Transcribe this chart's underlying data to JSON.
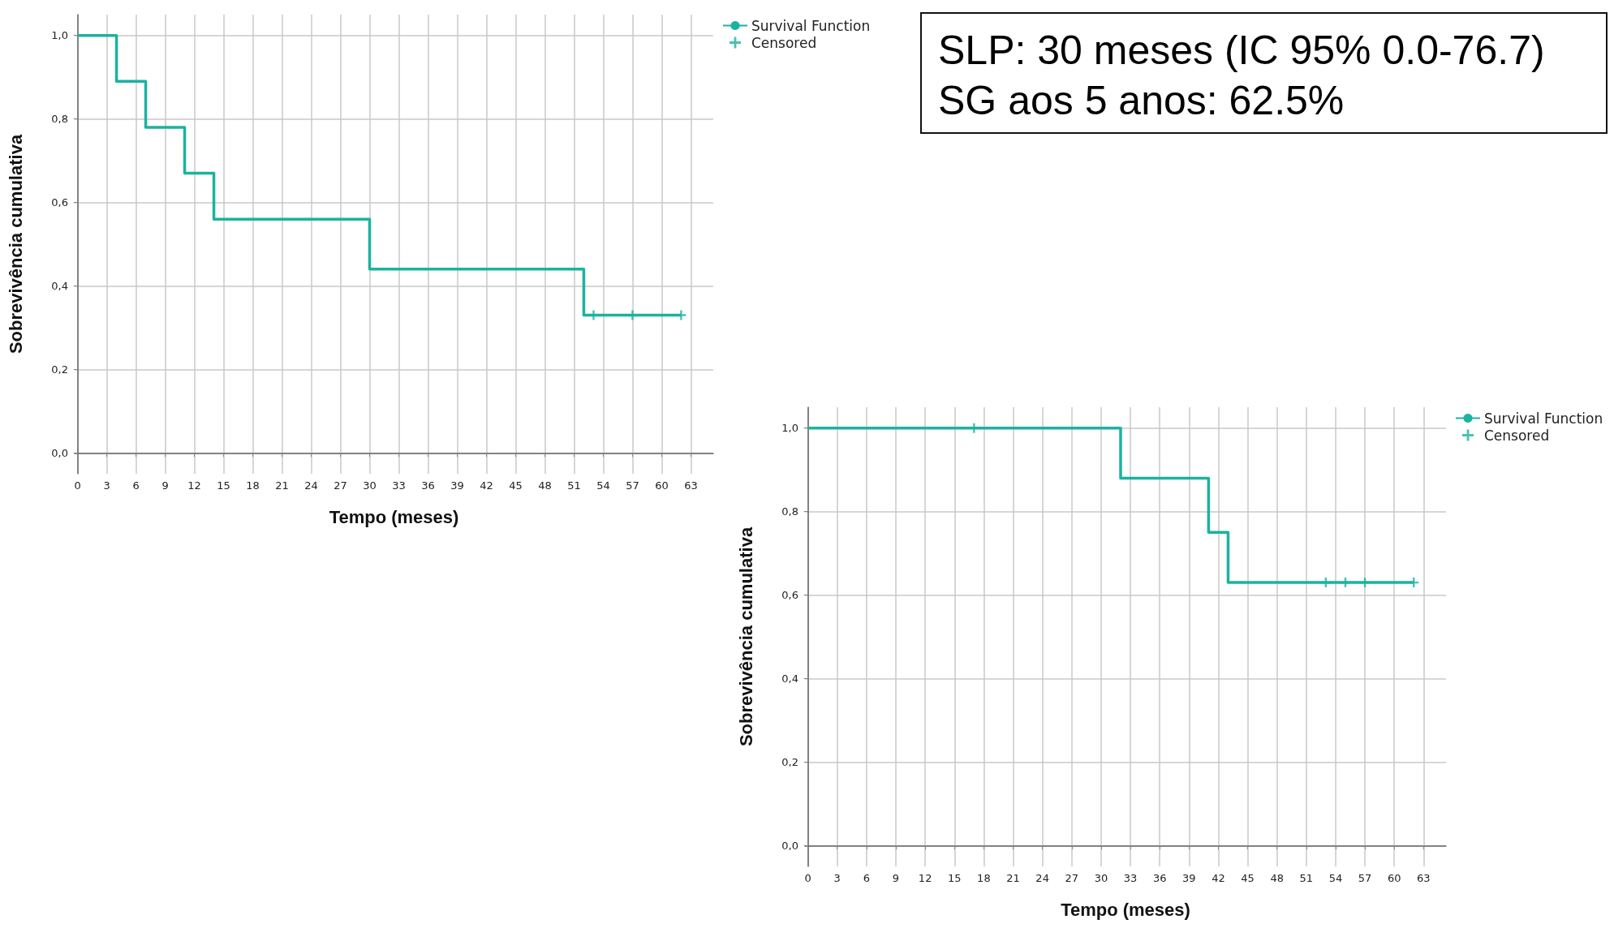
{
  "chart_data": [
    {
      "type": "step",
      "xlabel": "Tempo (meses)",
      "ylabel": "Sobrevivência cumulativa",
      "xlim": [
        -0.3,
        65.3
      ],
      "ylim": [
        -0.05,
        1.05
      ],
      "xticks": [
        0,
        3,
        6,
        9,
        12,
        15,
        18,
        21,
        24,
        27,
        30,
        33,
        36,
        39,
        42,
        45,
        48,
        51,
        54,
        57,
        60,
        63
      ],
      "yticks": [
        {
          "value": 0,
          "label": "0,0"
        },
        {
          "value": 0.2,
          "label": "0,2"
        },
        {
          "value": 0.4,
          "label": "0,4"
        },
        {
          "value": 0.6,
          "label": "0,6"
        },
        {
          "value": 0.8,
          "label": "0,8"
        },
        {
          "value": 1,
          "label": "1,0"
        }
      ],
      "grid": true,
      "legend": "top right",
      "series": [
        {
          "name": "Survival Function",
          "type": "step",
          "color": "#1ab39f",
          "x": [
            0,
            4,
            7,
            11,
            14,
            30,
            52,
            62
          ],
          "values": [
            1,
            0.89,
            0.78,
            0.67,
            0.56,
            0.44,
            0.33,
            0.33
          ]
        },
        {
          "name": "Censored",
          "type": "scatter",
          "marker": "cross",
          "color": "#1ab39f",
          "x": [
            53,
            57,
            62
          ],
          "values": [
            0.33,
            0.33,
            0.33
          ]
        }
      ]
    },
    {
      "type": "step",
      "xlabel": "Tempo (meses)",
      "ylabel": "Sobrevivência cumulativa",
      "xlim": [
        -0.3,
        65.3
      ],
      "ylim": [
        -0.05,
        1.05
      ],
      "xticks": [
        0,
        3,
        6,
        9,
        12,
        15,
        18,
        21,
        24,
        27,
        30,
        33,
        36,
        39,
        42,
        45,
        48,
        51,
        54,
        57,
        60,
        63
      ],
      "yticks": [
        {
          "value": 0,
          "label": "0,0"
        },
        {
          "value": 0.2,
          "label": "0,2"
        },
        {
          "value": 0.4,
          "label": "0,4"
        },
        {
          "value": 0.6,
          "label": "0,6"
        },
        {
          "value": 0.8,
          "label": "0,8"
        },
        {
          "value": 1,
          "label": "1,0"
        }
      ],
      "grid": true,
      "legend": "top right",
      "series": [
        {
          "name": "Survival Function",
          "type": "step",
          "color": "#1ab39f",
          "x": [
            0,
            32,
            41,
            43,
            62
          ],
          "values": [
            1,
            0.88,
            0.75,
            0.63,
            0.63
          ]
        },
        {
          "name": "Censored",
          "type": "scatter",
          "marker": "cross",
          "color": "#1ab39f",
          "x": [
            17,
            53,
            55,
            57,
            62
          ],
          "values": [
            1,
            0.63,
            0.63,
            0.63,
            0.63
          ]
        }
      ]
    },
    {
      "type": "other",
      "annotations": [
        "SLP: 30 meses (IC 95% 0.0-76.7)",
        "SG aos 5 anos: 62.5%"
      ]
    }
  ]
}
